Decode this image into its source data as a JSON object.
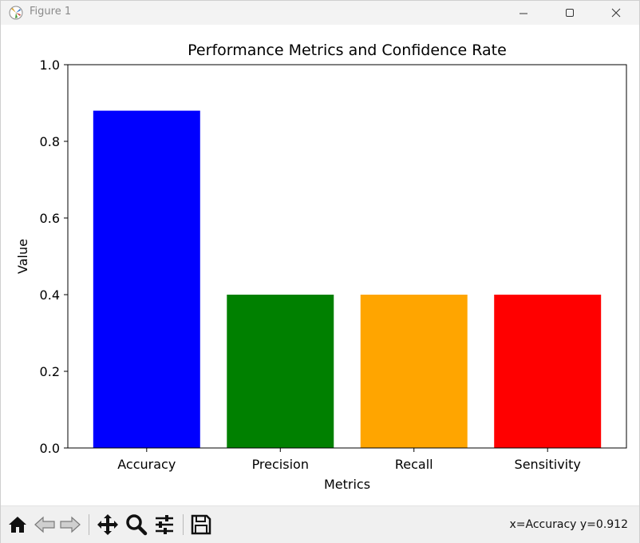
{
  "window": {
    "title": "Figure 1",
    "minimize_icon": "minimize-icon",
    "maximize_icon": "maximize-icon",
    "close_icon": "close-icon"
  },
  "chart_data": {
    "type": "bar",
    "title": "Performance Metrics and Confidence Rate",
    "xlabel": "Metrics",
    "ylabel": "Value",
    "categories": [
      "Accuracy",
      "Precision",
      "Recall",
      "Sensitivity"
    ],
    "values": [
      0.88,
      0.4,
      0.4,
      0.4
    ],
    "colors": [
      "#0000ff",
      "#008000",
      "#ffa500",
      "#ff0000"
    ],
    "ylim": [
      0,
      1.0
    ],
    "yticks": [
      "0.0",
      "0.2",
      "0.4",
      "0.6",
      "0.8",
      "1.0"
    ],
    "grid": false
  },
  "toolbar": {
    "tools": [
      "home-icon",
      "back-icon",
      "forward-icon",
      "pan-icon",
      "zoom-icon",
      "configure-subplots-icon",
      "save-icon"
    ],
    "coords_text": "x=Accuracy y=0.912"
  }
}
